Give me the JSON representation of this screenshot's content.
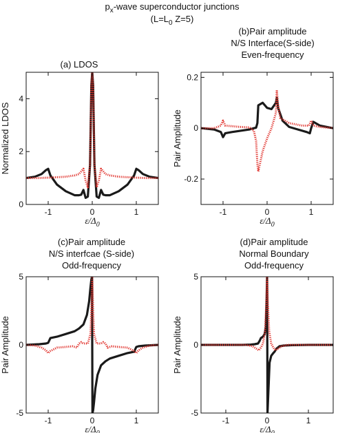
{
  "figure": {
    "title_main": "p",
    "title_sub": "x",
    "title_rest": "-wave superconductor junctions",
    "subtitle": "(L=L",
    "subtitle_sub": "0",
    "subtitle_rest": " Z=5)"
  },
  "colors": {
    "black_series": "#1a1a1a",
    "red_series": "#e0302a"
  },
  "chart_data": [
    {
      "id": "a",
      "type": "line",
      "title_lines": [
        "(a) LDOS"
      ],
      "xlabel": "ε/Δ",
      "xlabel_sub": "0",
      "ylabel": "Normalized LDOS",
      "xlim": [
        -1.5,
        1.5
      ],
      "ylim": [
        0,
        5
      ],
      "xticks": [
        -1,
        0,
        1
      ],
      "xtick_labels": [
        "-1",
        "0",
        "1"
      ],
      "yticks": [
        0,
        2,
        4
      ],
      "ytick_labels": [
        "0",
        "2",
        "4"
      ],
      "grid": false,
      "series": [
        {
          "color": "black",
          "style": "solid",
          "x": [
            -1.5,
            -1.3,
            -1.15,
            -1.05,
            -1.0,
            -0.95,
            -0.8,
            -0.6,
            -0.4,
            -0.3,
            -0.25,
            -0.2,
            -0.15,
            -0.1,
            -0.05,
            -0.02,
            0,
            0.02,
            0.05,
            0.1,
            0.15,
            0.2,
            0.25,
            0.3,
            0.4,
            0.6,
            0.8,
            0.95,
            1.0,
            1.05,
            1.15,
            1.3,
            1.5
          ],
          "y": [
            1.0,
            1.05,
            1.15,
            1.3,
            1.35,
            1.1,
            0.75,
            0.5,
            0.35,
            0.35,
            0.37,
            0.55,
            0.25,
            0.3,
            1.5,
            4.5,
            5.0,
            4.5,
            1.5,
            0.3,
            0.25,
            0.55,
            0.37,
            0.35,
            0.35,
            0.5,
            0.75,
            1.1,
            1.35,
            1.3,
            1.15,
            1.05,
            1.0
          ]
        },
        {
          "color": "red",
          "style": "dotted",
          "x": [
            -1.5,
            -1.2,
            -0.9,
            -0.6,
            -0.4,
            -0.3,
            -0.25,
            -0.2,
            -0.15,
            -0.1,
            -0.05,
            -0.02,
            0,
            0.02,
            0.05,
            0.1,
            0.15,
            0.2,
            0.25,
            0.3,
            0.4,
            0.6,
            0.9,
            1.2,
            1.5
          ],
          "y": [
            1.0,
            1.0,
            1.02,
            1.05,
            1.1,
            1.15,
            1.25,
            1.35,
            0.9,
            0.65,
            1.5,
            4.5,
            5.0,
            4.5,
            1.5,
            0.65,
            0.9,
            1.35,
            1.25,
            1.15,
            1.1,
            1.05,
            1.02,
            1.0,
            1.0
          ]
        }
      ]
    },
    {
      "id": "b",
      "type": "line",
      "title_lines": [
        "(b)Pair  amplitude",
        "N/S Interface(S-side)",
        "Even-frequency"
      ],
      "xlabel": "ε/Δ",
      "xlabel_sub": "0",
      "ylabel": "Pair Amplitude",
      "xlim": [
        -1.5,
        1.5
      ],
      "ylim": [
        -0.3,
        0.22
      ],
      "xticks": [
        -1,
        0,
        1
      ],
      "xtick_labels": [
        "-1",
        "0",
        "1"
      ],
      "yticks": [
        -0.2,
        0,
        0.2
      ],
      "ytick_labels": [
        "-0.2",
        "0",
        "0.2"
      ],
      "grid": false,
      "series": [
        {
          "color": "black",
          "style": "solid",
          "x": [
            -1.5,
            -1.2,
            -1.05,
            -1.0,
            -0.95,
            -0.8,
            -0.6,
            -0.4,
            -0.3,
            -0.25,
            -0.22,
            -0.2,
            -0.1,
            0,
            0.1,
            0.2,
            0.22,
            0.25,
            0.35,
            0.5,
            0.7,
            0.9,
            0.97,
            1.0,
            1.05,
            1.2,
            1.5
          ],
          "y": [
            0.0,
            -0.005,
            -0.015,
            -0.035,
            -0.02,
            -0.015,
            -0.01,
            -0.005,
            -0.0,
            0.002,
            0.02,
            0.09,
            0.1,
            0.08,
            0.075,
            0.1,
            0.12,
            0.08,
            0.03,
            0.005,
            -0.005,
            -0.015,
            -0.02,
            0.0,
            0.025,
            0.01,
            0.0
          ]
        },
        {
          "color": "red",
          "style": "dotted",
          "x": [
            -1.5,
            -1.2,
            -1.05,
            -1.0,
            -0.95,
            -0.6,
            -0.4,
            -0.3,
            -0.25,
            -0.22,
            -0.2,
            -0.1,
            0,
            0.1,
            0.2,
            0.22,
            0.25,
            0.3,
            0.5,
            0.8,
            0.95,
            1.0,
            1.05,
            1.2,
            1.5
          ],
          "y": [
            0.0,
            0.0,
            0.01,
            0.03,
            0.01,
            0.005,
            0.003,
            -0.01,
            -0.05,
            -0.14,
            -0.17,
            -0.09,
            -0.04,
            -0.0,
            0.06,
            0.15,
            0.09,
            0.04,
            0.02,
            0.01,
            0.01,
            0.03,
            0.01,
            0.005,
            0.0
          ]
        }
      ]
    },
    {
      "id": "c",
      "type": "line",
      "title_lines": [
        "(c)Pair amplitude",
        "N/S interfcae (S-side)",
        "Odd-frequency"
      ],
      "xlabel": "ε/Δ",
      "xlabel_sub": "0",
      "ylabel": "Pair Amplitude",
      "xlim": [
        -1.5,
        1.5
      ],
      "ylim": [
        -5,
        5
      ],
      "xticks": [
        -1,
        0,
        1
      ],
      "xtick_labels": [
        "-1",
        "0",
        "1"
      ],
      "yticks": [
        -5,
        0,
        5
      ],
      "ytick_labels": [
        "-5",
        "0",
        "5"
      ],
      "grid": false,
      "series": [
        {
          "color": "black",
          "style": "solid",
          "x": [
            -1.5,
            -1.2,
            -1.05,
            -1.0,
            -0.95,
            -0.8,
            -0.6,
            -0.4,
            -0.3,
            -0.2,
            -0.12,
            -0.07,
            -0.04,
            -0.02,
            -0.005,
            0.005,
            0.02,
            0.04,
            0.07,
            0.12,
            0.2,
            0.3,
            0.4,
            0.6,
            0.8,
            0.95,
            1.0,
            1.05,
            1.2,
            1.5
          ],
          "y": [
            0.0,
            0.05,
            0.1,
            0.15,
            0.5,
            0.6,
            0.8,
            1.0,
            1.2,
            1.5,
            2.2,
            3.2,
            4.2,
            4.8,
            5.0,
            -5.0,
            -4.8,
            -4.2,
            -3.2,
            -2.2,
            -1.5,
            -1.2,
            -1.0,
            -0.8,
            -0.6,
            -0.5,
            -0.15,
            -0.1,
            -0.05,
            0.0
          ]
        },
        {
          "color": "red",
          "style": "dotted",
          "x": [
            -1.5,
            -1.3,
            -1.15,
            -1.05,
            -1.0,
            -0.95,
            -0.8,
            -0.6,
            -0.45,
            -0.35,
            -0.3,
            -0.25,
            -0.2,
            -0.1,
            -0.04,
            -0.02,
            0,
            0.02,
            0.04,
            0.1,
            0.2,
            0.25,
            0.3,
            0.35,
            0.45,
            0.6,
            0.8,
            0.95,
            1.0,
            1.05,
            1.15,
            1.3,
            1.5
          ],
          "y": [
            0.0,
            -0.05,
            -0.2,
            -0.4,
            -0.6,
            -0.45,
            -0.2,
            -0.15,
            -0.1,
            -0.2,
            0.1,
            0.2,
            0.1,
            0.1,
            0.8,
            2.5,
            5.0,
            2.5,
            0.8,
            0.1,
            0.1,
            0.2,
            0.1,
            -0.2,
            -0.1,
            -0.15,
            -0.2,
            -0.45,
            -0.6,
            -0.4,
            -0.2,
            -0.05,
            0.0
          ]
        }
      ]
    },
    {
      "id": "d",
      "type": "line",
      "title_lines": [
        "(d)Pair amplitude",
        "Normal Boundary",
        "Odd-frequency"
      ],
      "xlabel": "ε/Δ",
      "xlabel_sub": "0",
      "ylabel": "Pair Amplitude",
      "xlim": [
        -1.6,
        1.6
      ],
      "ylim": [
        -5,
        5
      ],
      "xticks": [
        -1,
        0,
        1
      ],
      "xtick_labels": [
        "-1",
        "0",
        "1"
      ],
      "yticks": [
        -5,
        0,
        5
      ],
      "ytick_labels": [
        "-5",
        "0",
        "5"
      ],
      "grid": false,
      "series": [
        {
          "color": "black",
          "style": "solid",
          "x": [
            -1.6,
            -1.0,
            -0.6,
            -0.4,
            -0.3,
            -0.22,
            -0.18,
            -0.15,
            -0.1,
            -0.06,
            -0.03,
            -0.01,
            0,
            0.01,
            0.03,
            0.06,
            0.1,
            0.15,
            0.18,
            0.22,
            0.3,
            0.4,
            0.6,
            1.0,
            1.6
          ],
          "y": [
            0.0,
            0.0,
            0.0,
            0.02,
            0.05,
            0.1,
            0.3,
            0.5,
            0.6,
            0.8,
            1.3,
            3.5,
            5.0,
            -5.0,
            -3.5,
            -1.3,
            -0.8,
            -0.6,
            -0.5,
            -0.3,
            -0.1,
            -0.05,
            -0.02,
            0.0,
            0.0
          ]
        },
        {
          "color": "red",
          "style": "dotted",
          "x": [
            -1.6,
            -0.8,
            -0.5,
            -0.35,
            -0.25,
            -0.2,
            -0.15,
            -0.1,
            -0.05,
            -0.02,
            0,
            0.02,
            0.05,
            0.1,
            0.15,
            0.2,
            0.25,
            0.35,
            0.5,
            0.8,
            1.6
          ],
          "y": [
            0.0,
            0.0,
            0.0,
            -0.1,
            -0.3,
            -0.4,
            -0.2,
            0.1,
            1.0,
            3.0,
            5.0,
            3.0,
            1.0,
            0.1,
            -0.2,
            -0.4,
            -0.3,
            -0.1,
            0.0,
            0.0,
            0.0
          ]
        }
      ]
    }
  ]
}
